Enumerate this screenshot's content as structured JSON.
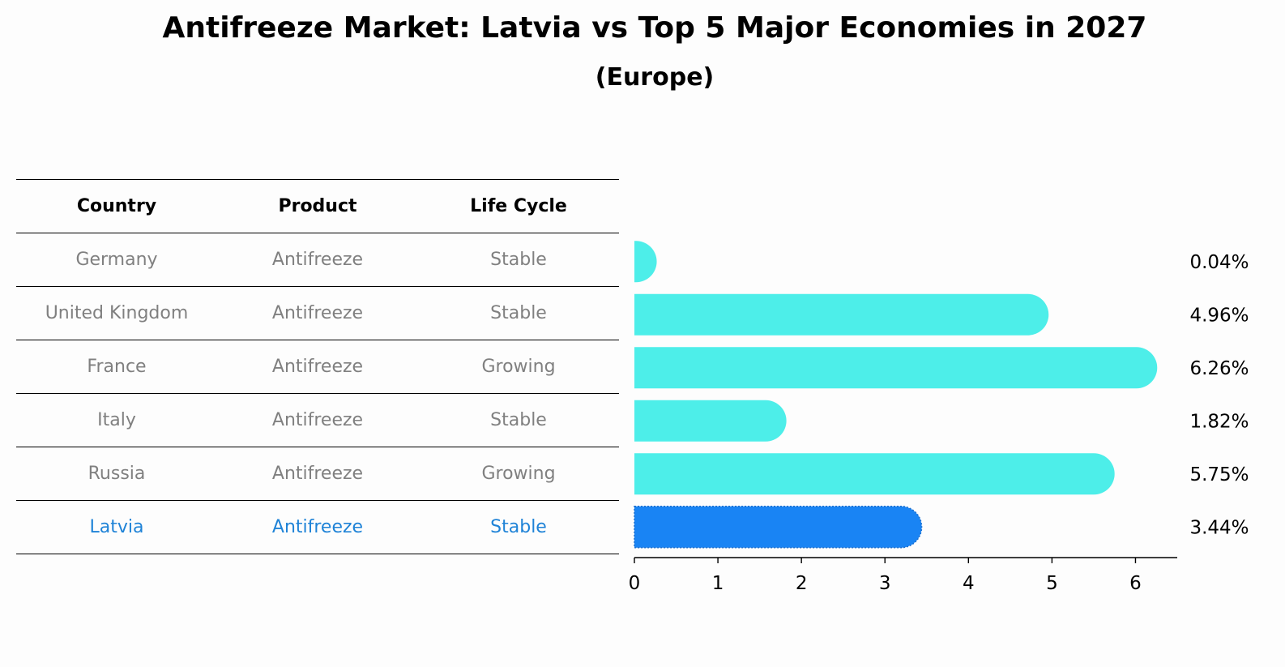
{
  "page_title": "Antifreeze Market: Latvia vs Top 5 Major Economies in 2027",
  "page_subtitle": "(Europe)",
  "table": {
    "headers": [
      "Country",
      "Product",
      "Life Cycle"
    ],
    "rows": [
      [
        "Germany",
        "Antifreeze",
        "Stable"
      ],
      [
        "United Kingdom",
        "Antifreeze",
        "Stable"
      ],
      [
        "France",
        "Antifreeze",
        "Growing"
      ],
      [
        "Italy",
        "Antifreeze",
        "Stable"
      ],
      [
        "Russia",
        "Antifreeze",
        "Growing"
      ],
      [
        "Latvia",
        "Antifreeze",
        "Stable"
      ]
    ],
    "highlight_row": 5,
    "text_color": "#808080",
    "highlight_color": "#1f83d7"
  },
  "chart_data": {
    "type": "bar",
    "orientation": "horizontal",
    "title": "Antifreeze Market: Latvia vs Top 5 Major Economies in 2027",
    "subtitle": "(Europe)",
    "categories": [
      "Germany",
      "United Kingdom",
      "France",
      "Italy",
      "Russia",
      "Latvia"
    ],
    "values": [
      0.04,
      4.96,
      6.26,
      1.82,
      5.75,
      3.44
    ],
    "value_labels": [
      "0.04%",
      "4.96%",
      "6.26%",
      "1.82%",
      "5.75%",
      "3.44%"
    ],
    "xlim": [
      0,
      6.5
    ],
    "xticks": [
      0,
      1,
      2,
      3,
      4,
      5,
      6
    ],
    "xtick_labels": [
      "0",
      "1",
      "2",
      "3",
      "4",
      "5",
      "6"
    ],
    "xlabel": "",
    "ylabel": "",
    "grid": false,
    "bar_color": "#4deee9",
    "highlight_index": 5,
    "highlight_color": "#1984f4"
  }
}
